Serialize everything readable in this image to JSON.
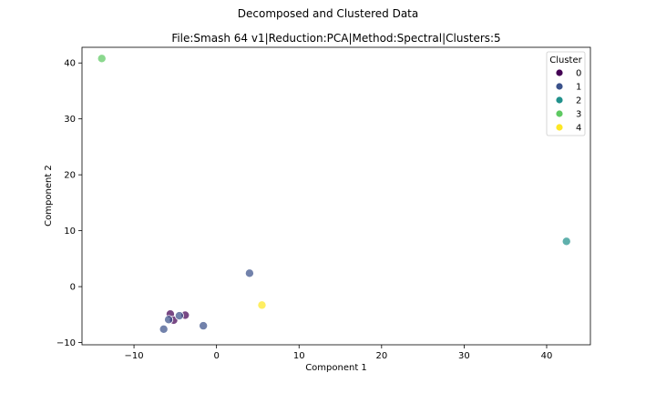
{
  "chart_data": {
    "type": "scatter",
    "suptitle": "Decomposed and Clustered Data",
    "title": "File:Smash 64 v1|Reduction:PCA|Method:Spectral|Clusters:5",
    "xlabel": "Component 1",
    "ylabel": "Component 2",
    "xlim": [
      -16.3,
      45.3
    ],
    "ylim": [
      -10.4,
      42.8
    ],
    "xticks": [
      -10,
      0,
      10,
      20,
      30,
      40
    ],
    "yticks": [
      -10,
      0,
      10,
      20,
      30,
      40
    ],
    "grid": false,
    "legend": {
      "title": "Cluster",
      "placement": "top-right",
      "entries": [
        "0",
        "1",
        "2",
        "3",
        "4"
      ]
    },
    "colors": [
      "#440154",
      "#3b528b",
      "#21918c",
      "#5ec962",
      "#fde725"
    ],
    "series": [
      {
        "name": "0",
        "color": "#440154",
        "points": [
          [
            -5.6,
            -4.9
          ],
          [
            -5.2,
            -6.0
          ],
          [
            -3.8,
            -5.1
          ]
        ]
      },
      {
        "name": "1",
        "color": "#3b528b",
        "points": [
          [
            4.0,
            2.4
          ],
          [
            -4.5,
            -5.2
          ],
          [
            -5.8,
            -5.9
          ],
          [
            -6.4,
            -7.6
          ],
          [
            -1.6,
            -7.0
          ]
        ]
      },
      {
        "name": "2",
        "color": "#21918c",
        "points": [
          [
            42.4,
            8.1
          ]
        ]
      },
      {
        "name": "3",
        "color": "#5ec962",
        "points": [
          [
            -13.9,
            40.8
          ]
        ]
      },
      {
        "name": "4",
        "color": "#fde725",
        "points": [
          [
            5.5,
            -3.3
          ]
        ]
      }
    ]
  }
}
